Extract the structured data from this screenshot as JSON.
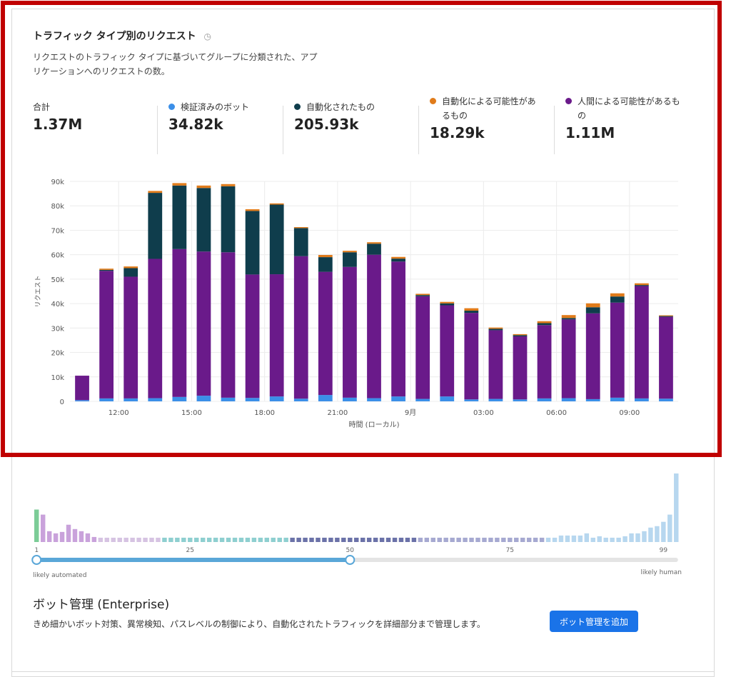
{
  "card": {
    "title": "トラフィック タイプ別のリクエスト",
    "title_icon": "clock-icon",
    "description": "リクエストのトラフィック タイプに基づいてグループに分類された、アプリケーションへのリクエストの数。"
  },
  "stats": [
    {
      "label": "合計",
      "value": "1.37M",
      "color": ""
    },
    {
      "label": "検証済みのボット",
      "value": "34.82k",
      "color": "#3b8fe8"
    },
    {
      "label": "自動化されたもの",
      "value": "205.93k",
      "color": "#0f3d4c"
    },
    {
      "label": "自動化による可能性があるもの",
      "value": "18.29k",
      "color": "#e07b1a"
    },
    {
      "label": "人間による可能性があるもの",
      "value": "1.11M",
      "color": "#6a1a8a"
    }
  ],
  "chart_data": {
    "type": "bar",
    "stacked": true,
    "ylabel": "リクエスト",
    "xlabel": "時間 (ローカル)",
    "ylim": [
      0,
      90000
    ],
    "yticks": [
      "0",
      "10k",
      "20k",
      "30k",
      "40k",
      "50k",
      "60k",
      "70k",
      "80k",
      "90k"
    ],
    "xtick_labels": [
      {
        "bar": 2,
        "label": "12:00"
      },
      {
        "bar": 5,
        "label": "15:00"
      },
      {
        "bar": 8,
        "label": "18:00"
      },
      {
        "bar": 11,
        "label": "21:00"
      },
      {
        "bar": 14,
        "label": "9月"
      },
      {
        "bar": 17,
        "label": "03:00"
      },
      {
        "bar": 20,
        "label": "06:00"
      },
      {
        "bar": 23,
        "label": "09:00"
      }
    ],
    "grid": true,
    "series": [
      {
        "name": "検証済みのボット",
        "color": "#3b8fe8",
        "values": [
          500,
          1200,
          1200,
          1300,
          1800,
          2300,
          1500,
          1400,
          2000,
          1100,
          2600,
          1500,
          1300,
          2000,
          1000,
          2000,
          800,
          1000,
          800,
          1200,
          1300,
          900,
          1500,
          1200,
          1100
        ]
      },
      {
        "name": "人間による可能性があるもの",
        "color": "#6a1a8a",
        "values": [
          10000,
          52200,
          49800,
          57000,
          60500,
          59000,
          59500,
          50500,
          50000,
          58300,
          50400,
          53500,
          58700,
          55200,
          42000,
          37300,
          35400,
          28100,
          25800,
          30000,
          32200,
          35100,
          38900,
          46000,
          33500
        ]
      },
      {
        "name": "自動化されたもの",
        "color": "#0f3d4c",
        "values": [
          0,
          400,
          3500,
          27000,
          26000,
          26000,
          27000,
          26000,
          28500,
          11500,
          6000,
          6000,
          4500,
          1200,
          500,
          800,
          900,
          600,
          500,
          800,
          600,
          2500,
          2500,
          400,
          300
        ]
      },
      {
        "name": "自動化による可能性があるもの",
        "color": "#e07b1a",
        "values": [
          0,
          500,
          700,
          800,
          1000,
          1000,
          900,
          700,
          500,
          400,
          900,
          600,
          600,
          700,
          500,
          600,
          1000,
          500,
          400,
          800,
          1200,
          1600,
          1300,
          700,
          300
        ]
      }
    ]
  },
  "score_histogram": {
    "values": [
      45,
      38,
      15,
      12,
      14,
      24,
      18,
      15,
      12,
      7,
      6,
      6,
      6,
      6,
      6,
      6,
      6,
      6,
      6,
      6,
      6,
      6,
      6,
      6,
      6,
      6,
      6,
      6,
      6,
      6,
      6,
      6,
      6,
      6,
      6,
      6,
      6,
      6,
      6,
      6,
      6,
      6,
      6,
      6,
      6,
      6,
      6,
      6,
      6,
      6,
      6,
      6,
      6,
      6,
      6,
      6,
      6,
      6,
      6,
      6,
      6,
      6,
      6,
      6,
      6,
      6,
      6,
      6,
      6,
      6,
      6,
      6,
      6,
      6,
      6,
      6,
      6,
      6,
      6,
      6,
      6,
      6,
      9,
      9,
      9,
      9,
      12,
      6,
      8,
      6,
      6,
      6,
      8,
      12,
      12,
      15,
      20,
      22,
      28,
      38,
      95
    ],
    "tick_labels": [
      "1",
      "25",
      "50",
      "75",
      "99"
    ],
    "slider_value": 50,
    "left_caption": "likely automated",
    "right_caption": "likely human"
  },
  "bot_mgmt": {
    "title": "ボット管理 (Enterprise)",
    "description": "きめ細かいボット対策、異常検知、パスレベルの制御により、自動化されたトラフィックを詳細部分まで管理します。",
    "button_label": "ボット管理を追加"
  }
}
